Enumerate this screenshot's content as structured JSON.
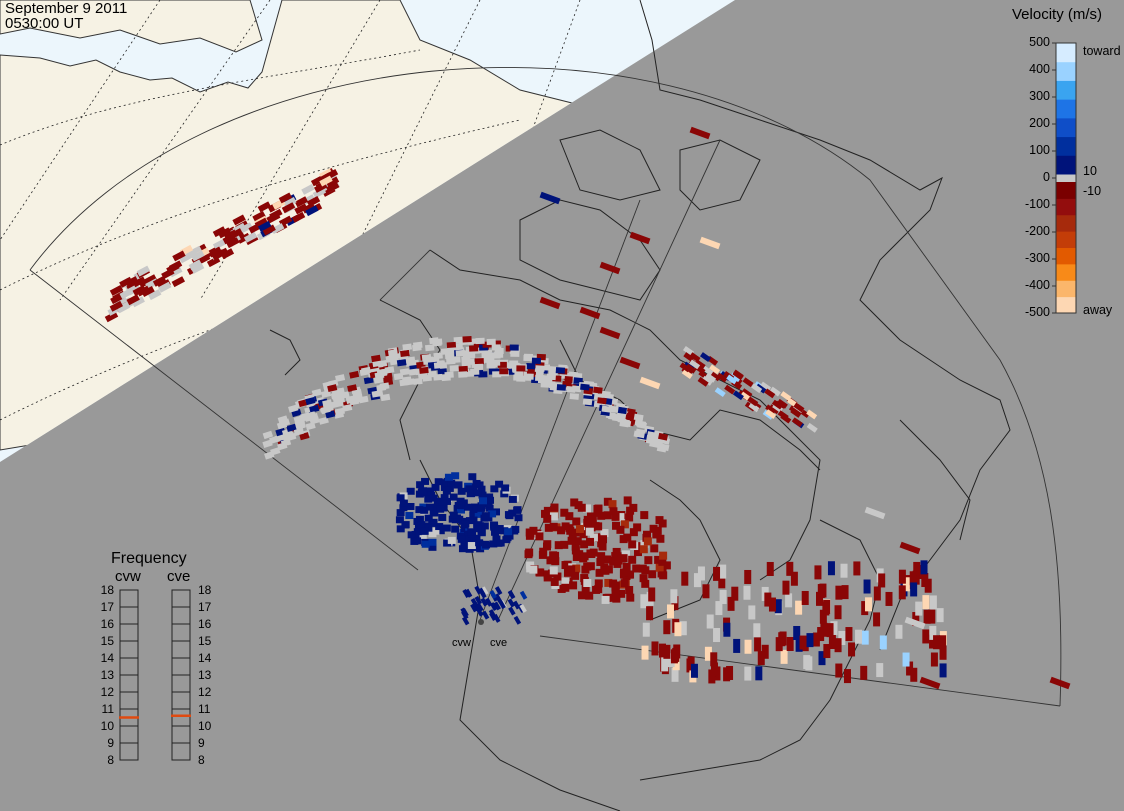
{
  "header": {
    "date": "September  9 2011",
    "time": "0530:00 UT"
  },
  "velocity_scale": {
    "title": "Velocity (m/s)",
    "tick_labels": [
      "500",
      "400",
      "300",
      "200",
      "100",
      "0",
      "-100",
      "-200",
      "-300",
      "-400",
      "-500"
    ],
    "inner_labels": [
      "10",
      "-10"
    ],
    "end_labels": {
      "top": "toward",
      "bottom": "away"
    },
    "colors_toward": [
      "#d6ecff",
      "#9ad2ff",
      "#3aa4f0",
      "#1e74e6",
      "#0f4ec8",
      "#002f9e",
      "#00137a"
    ],
    "colors_away": [
      "#7a0000",
      "#930d0d",
      "#a62a0c",
      "#c33d08",
      "#e25a00",
      "#f88a18",
      "#fbb66b",
      "#fdd7b3"
    ],
    "zero_colors": [
      "#c8c8c8"
    ]
  },
  "frequency": {
    "title": "Frequency",
    "radars": [
      {
        "name": "cvw",
        "value_mhz": 10.5
      },
      {
        "name": "cve",
        "value_mhz": 10.6
      }
    ],
    "scale_labels": [
      "18",
      "17",
      "16",
      "15",
      "14",
      "13",
      "12",
      "11",
      "10",
      "9",
      "8"
    ],
    "marker_color": "#e04a10"
  },
  "stations": [
    {
      "label": "cvw"
    },
    {
      "label": "cve"
    }
  ],
  "colors": {
    "background": "#999999",
    "daylight": "#ecf6fc",
    "land_day": "#f6f2e4"
  }
}
